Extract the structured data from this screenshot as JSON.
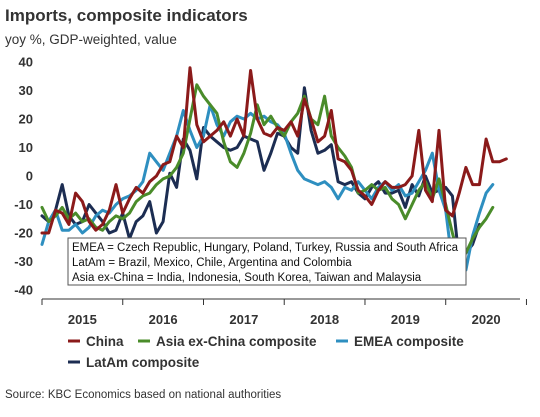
{
  "title": "Imports, composite indicators",
  "subtitle": "yoy %, GDP-weighted, value",
  "source": "Source: KBC Economics based on national authorities",
  "chart_data": {
    "type": "line",
    "ylim": [
      -40,
      40
    ],
    "yticks": [
      40,
      30,
      20,
      10,
      0,
      -10,
      -20,
      -30,
      -40
    ],
    "xticks": [
      "2015",
      "2016",
      "2017",
      "2018",
      "2019",
      "2020"
    ],
    "xlim": [
      2015.0,
      2020.92
    ],
    "grid": false,
    "legend_position": "bottom",
    "notes": [
      "EMEA = Czech Republic, Hungary, Poland, Turkey, Russia and South Africa",
      "LatAm = Brazil, Mexico, Chile, Argentina and Colombia",
      "Asia ex-China = India, Indonesia, South Korea, Taiwan and Malaysia"
    ],
    "series": [
      {
        "name": "China",
        "color": "#8b1a1a",
        "start": 2015.0,
        "values": [
          -20,
          -20,
          -12,
          -13,
          -17,
          -6,
          -9,
          -16,
          -19,
          -17,
          -12,
          -3,
          -13,
          -8,
          -4,
          -6,
          -2,
          0,
          4,
          5,
          14,
          10,
          38,
          18,
          12,
          14,
          16,
          19,
          14,
          20,
          14,
          37,
          20,
          15,
          14,
          17,
          16,
          19,
          14,
          27,
          20,
          12,
          14,
          23,
          6,
          5,
          2,
          -5,
          -7,
          -10,
          -5,
          -2,
          -4,
          -4,
          -3,
          0,
          16,
          -5,
          -9,
          16,
          -12,
          -14,
          -6,
          3,
          -3,
          -3,
          13,
          5,
          5,
          6
        ]
      },
      {
        "name": "Asia ex-China composite",
        "color": "#4a8c2a",
        "start": 2015.0,
        "values": [
          -11,
          -16,
          -14,
          -11,
          -15,
          -13,
          -16,
          -15,
          -18,
          -19,
          -16,
          -14,
          -15,
          -13,
          -9,
          -7,
          -6,
          -3,
          -1,
          0,
          3,
          8,
          20,
          32,
          28,
          25,
          22,
          12,
          5,
          3,
          8,
          15,
          25,
          18,
          21,
          17,
          14,
          19,
          22,
          28,
          20,
          18,
          28,
          14,
          10,
          7,
          3,
          -6,
          -5,
          -3,
          -5,
          -4,
          -8,
          -10,
          -15,
          -10,
          -5,
          -2,
          -8,
          -1,
          -10,
          -20,
          -29,
          -27,
          -22,
          -18,
          -15,
          -11
        ]
      },
      {
        "name": "EMEA composite",
        "color": "#2e8fc0",
        "start": 2015.0,
        "values": [
          -24,
          -16,
          -12,
          -19,
          -19,
          -17,
          -20,
          -18,
          -14,
          -12,
          -13,
          -10,
          -8,
          -7,
          -5,
          -2,
          8,
          5,
          2,
          8,
          14,
          23,
          16,
          10,
          14,
          25,
          18,
          14,
          19,
          21,
          20,
          22,
          20,
          21,
          19,
          18,
          15,
          8,
          2,
          -1,
          -2,
          -3,
          -2,
          -4,
          -8,
          -4,
          -5,
          -2,
          -5,
          -8,
          -4,
          -2,
          -5,
          -3,
          -7,
          -6,
          -2,
          2,
          8,
          -5,
          -12,
          -31,
          -34,
          -33,
          -21,
          -13,
          -6,
          -3
        ]
      },
      {
        "name": "LatAm composite",
        "color": "#1c2d52",
        "start": 2015.0,
        "values": [
          -14,
          -16,
          -12,
          -3,
          -14,
          -17,
          -16,
          -10,
          -13,
          -16,
          -20,
          -19,
          -13,
          -22,
          -16,
          -14,
          -9,
          -20,
          -16,
          1,
          -4,
          13,
          9,
          -1,
          17,
          14,
          12,
          10,
          9,
          10,
          14,
          13,
          12,
          2,
          8,
          15,
          14,
          10,
          8,
          31,
          16,
          8,
          9,
          11,
          -2,
          -3,
          -2,
          -6,
          -8,
          -4,
          -2,
          -6,
          -6,
          -5,
          -11,
          -3,
          -7,
          0,
          -6,
          -5,
          -4,
          -7,
          -30,
          -27,
          -24,
          -17
        ]
      }
    ]
  }
}
